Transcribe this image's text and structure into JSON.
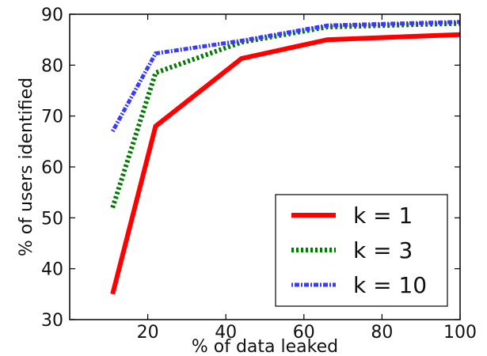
{
  "chart_data": {
    "type": "line",
    "title": "",
    "xlabel": "% of data leaked",
    "ylabel": "% of users identified",
    "xlim": [
      0,
      100
    ],
    "ylim": [
      30,
      90
    ],
    "xticks": [
      20,
      40,
      60,
      80,
      100
    ],
    "yticks": [
      30,
      40,
      50,
      60,
      70,
      80,
      90
    ],
    "grid": false,
    "legend_position": "lower-right",
    "series": [
      {
        "name": "k = 1",
        "color": "#ff0000",
        "style": "solid",
        "x": [
          11,
          22,
          44,
          66,
          100
        ],
        "y": [
          35,
          68,
          81.3,
          85,
          86
        ]
      },
      {
        "name": "k = 3",
        "color": "#007a00",
        "style": "dotted",
        "x": [
          11,
          22,
          44,
          66,
          100
        ],
        "y": [
          52,
          78.5,
          84.5,
          87.5,
          88.2
        ]
      },
      {
        "name": "k = 10",
        "color": "#3a3aff",
        "style": "dashdot",
        "x": [
          11,
          22,
          44,
          66,
          100
        ],
        "y": [
          67,
          82.3,
          84.8,
          87.8,
          88.5
        ]
      }
    ]
  }
}
